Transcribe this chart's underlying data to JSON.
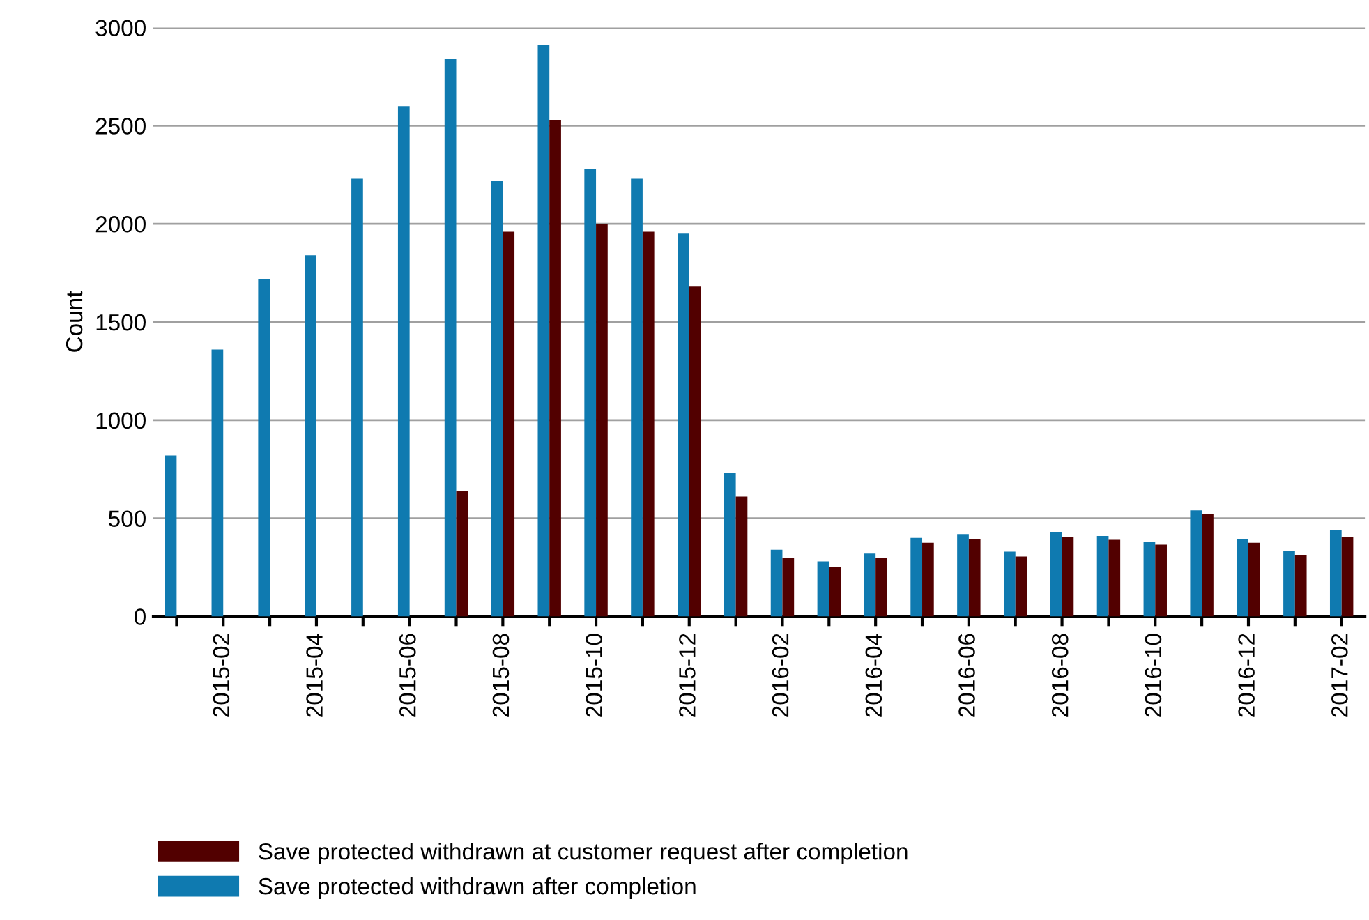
{
  "chart_data": {
    "type": "bar",
    "ylabel": "Count",
    "categories": [
      null,
      "2015-02",
      null,
      "2015-04",
      null,
      "2015-06",
      null,
      "2015-08",
      null,
      "2015-10",
      null,
      "2015-12",
      null,
      "2016-02",
      null,
      "2016-04",
      null,
      "2016-06",
      null,
      "2016-08",
      null,
      "2016-10",
      null,
      "2016-12",
      null,
      "2017-02"
    ],
    "series": [
      {
        "name": "Save protected withdrawn after completion",
        "color": "#0f7ab0",
        "values": [
          820,
          1360,
          1720,
          1840,
          2230,
          2600,
          2840,
          2220,
          2910,
          2280,
          2230,
          1950,
          730,
          340,
          280,
          320,
          400,
          420,
          330,
          430,
          410,
          380,
          540,
          395,
          335,
          440
        ]
      },
      {
        "name": "Save protected withdrawn at customer request after completion",
        "color": "#520000",
        "values": [
          0,
          0,
          0,
          0,
          0,
          0,
          640,
          1960,
          2530,
          2000,
          1960,
          1680,
          610,
          300,
          250,
          300,
          375,
          395,
          305,
          405,
          390,
          365,
          520,
          375,
          310,
          405
        ]
      }
    ],
    "ylim": [
      0,
      3000
    ],
    "yticks": [
      0,
      500,
      1000,
      1500,
      2000,
      2500,
      3000
    ],
    "grid": "y",
    "legend": "bottom"
  }
}
